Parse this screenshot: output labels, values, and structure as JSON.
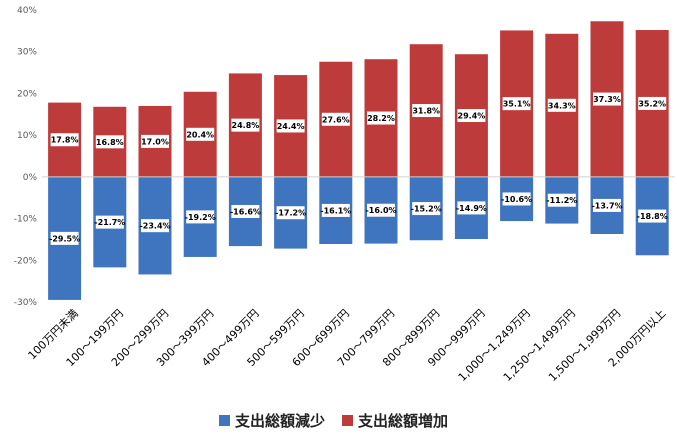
{
  "chart_data": {
    "type": "bar",
    "stacked": true,
    "categories": [
      "100万円未満",
      "100～199万円",
      "200～299万円",
      "300～399万円",
      "400～499万円",
      "500～599万円",
      "600～699万円",
      "700～799万円",
      "800～899万円",
      "900～999万円",
      "1,000～1,249万円",
      "1,250～1,499万円",
      "1,500～1,999万円",
      "2,000万円以上"
    ],
    "series": [
      {
        "name": "支出総額減少",
        "color": "#3f75be",
        "values": [
          -29.5,
          -21.7,
          -23.4,
          -19.2,
          -16.6,
          -17.2,
          -16.1,
          -16.0,
          -15.2,
          -14.9,
          -10.6,
          -11.2,
          -13.7,
          -18.8
        ],
        "labels": [
          "-29.5%",
          "-21.7%",
          "-23.4%",
          "-19.2%",
          "-16.6%",
          "-17.2%",
          "-16.1%",
          "-16.0%",
          "-15.2%",
          "-14.9%",
          "-10.6%",
          "-11.2%",
          "-13.7%",
          "-18.8%"
        ]
      },
      {
        "name": "支出総額増加",
        "color": "#be3b3b",
        "values": [
          17.8,
          16.8,
          17.0,
          20.4,
          24.8,
          24.4,
          27.6,
          28.2,
          31.8,
          29.4,
          35.1,
          34.3,
          37.3,
          35.2
        ],
        "labels": [
          "17.8%",
          "16.8%",
          "17.0%",
          "20.4%",
          "24.8%",
          "24.4%",
          "27.6%",
          "28.2%",
          "31.8%",
          "29.4%",
          "35.1%",
          "34.3%",
          "37.3%",
          "35.2%"
        ]
      }
    ],
    "yticks": [
      "-30%",
      "-20%",
      "-10%",
      "0%",
      "10%",
      "20%",
      "30%",
      "40%"
    ],
    "ylim": [
      -30,
      40
    ],
    "grid": false,
    "legend": "bottom"
  }
}
